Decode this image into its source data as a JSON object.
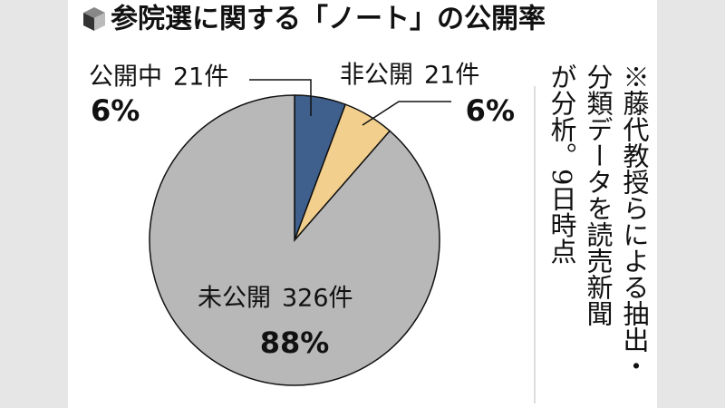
{
  "chart_data": {
    "type": "pie",
    "title": "参院選に関する「ノート」の公開率",
    "categories": [
      "公開中",
      "非公開",
      "未公開"
    ],
    "values": [
      6,
      6,
      88
    ],
    "value_labels": [
      "6%",
      "6%",
      "88%"
    ],
    "counts": [
      21,
      21,
      326
    ],
    "count_labels": [
      "21件",
      "21件",
      "326件"
    ],
    "colors": [
      "#3f5f8d",
      "#f2cf8c",
      "#b8b8b8"
    ],
    "note": [
      "※藤代教授らによる抽出・",
      "分類データを読売新聞",
      "が分析。9日時点"
    ]
  }
}
